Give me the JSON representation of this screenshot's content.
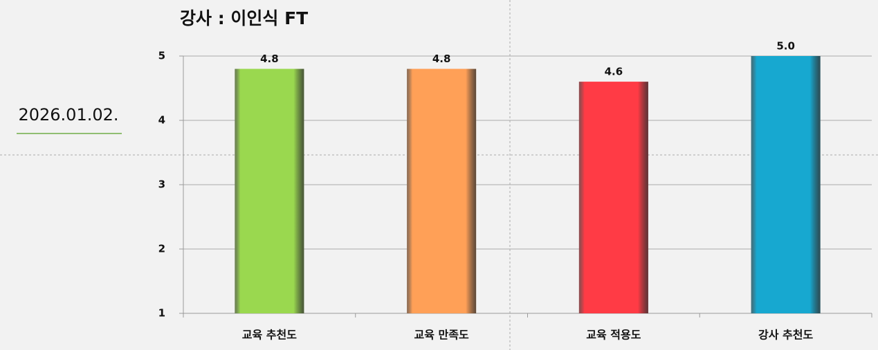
{
  "date": "2026.01.02.",
  "chart_data": {
    "type": "bar",
    "title": "강사 : 이인식 FT",
    "categories": [
      "교육 추천도",
      "교육 만족도",
      "교육 적용도",
      "강사 추천도"
    ],
    "values": [
      4.8,
      4.8,
      4.6,
      5
    ],
    "value_labels": [
      "4.8",
      "4.8",
      "4.6",
      "5.0"
    ],
    "colors": [
      "#9ad84f",
      "#ffa057",
      "#ff3b45",
      "#17a8d0"
    ],
    "ylim": [
      1,
      5
    ],
    "yticks": [
      1,
      2,
      3,
      4,
      5
    ],
    "grid": true
  }
}
